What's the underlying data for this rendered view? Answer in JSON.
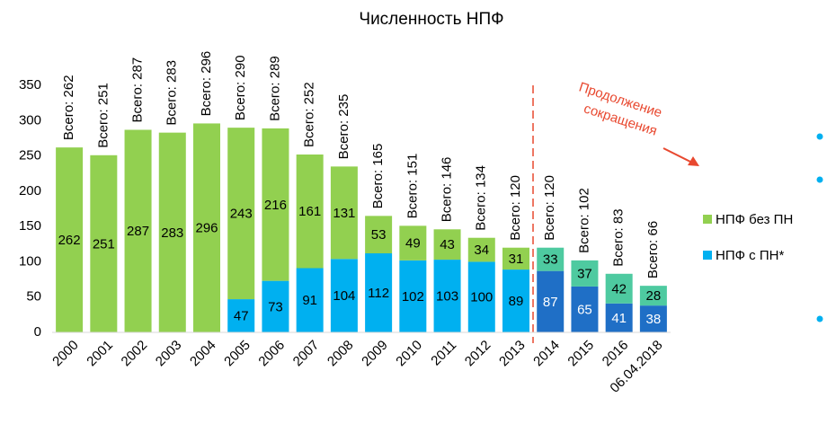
{
  "chart_data": {
    "type": "stacked_bar",
    "title": "Численность НПФ",
    "categories": [
      "2000",
      "2001",
      "2002",
      "2003",
      "2004",
      "2005",
      "2006",
      "2007",
      "2008",
      "2009",
      "2010",
      "2011",
      "2012",
      "2013",
      "2014",
      "2015",
      "2016",
      "06.04.2018"
    ],
    "series": [
      {
        "name": "НПФ с ПН*",
        "color": "#00b0f0",
        "colors": [
          "#00b0f0",
          "#00b0f0",
          "#00b0f0",
          "#00b0f0",
          "#00b0f0",
          "#00b0f0",
          "#00b0f0",
          "#00b0f0",
          "#00b0f0",
          "#00b0f0",
          "#00b0f0",
          "#00b0f0",
          "#00b0f0",
          "#00b0f0",
          "#1f6fc6",
          "#1f6fc6",
          "#1f6fc6",
          "#1f6fc6"
        ],
        "label_colors": [
          "#000",
          "#000",
          "#000",
          "#000",
          "#000",
          "#000",
          "#000",
          "#000",
          "#000",
          "#000",
          "#000",
          "#000",
          "#000",
          "#000",
          "#fff",
          "#fff",
          "#fff",
          "#fff"
        ],
        "values": [
          null,
          null,
          null,
          null,
          null,
          47,
          73,
          91,
          104,
          112,
          102,
          103,
          100,
          89,
          87,
          65,
          41,
          38
        ]
      },
      {
        "name": "НПФ без ПН",
        "color": "#92d050",
        "colors": [
          "#92d050",
          "#92d050",
          "#92d050",
          "#92d050",
          "#92d050",
          "#92d050",
          "#92d050",
          "#92d050",
          "#92d050",
          "#92d050",
          "#92d050",
          "#92d050",
          "#92d050",
          "#92d050",
          "#4ecaa0",
          "#4ecaa0",
          "#4ecaa0",
          "#4ecaa0"
        ],
        "label_colors": [
          "#000",
          "#000",
          "#000",
          "#000",
          "#000",
          "#000",
          "#000",
          "#000",
          "#000",
          "#000",
          "#000",
          "#000",
          "#000",
          "#000",
          "#000",
          "#000",
          "#000",
          "#000"
        ],
        "values": [
          262,
          251,
          287,
          283,
          296,
          243,
          216,
          161,
          131,
          53,
          49,
          43,
          34,
          31,
          33,
          37,
          42,
          28
        ]
      }
    ],
    "total_labels": [
      "Всего: 262",
      "Всего: 251",
      "Всего: 287",
      "Всего: 283",
      "Всего: 296",
      "Всего: 290",
      "Всего: 289",
      "Всего: 252",
      "Всего: 235",
      "Всего: 165",
      "Всего: 151",
      "Всего: 146",
      "Всего: 134",
      "Всего: 120",
      "Всего: 120",
      "Всего: 102",
      "Всего: 83",
      "Всего: 66"
    ],
    "annotation": [
      "Продолжение",
      "сокращения"
    ],
    "ylim": [
      0,
      350
    ],
    "yticks": [
      0,
      50,
      100,
      150,
      200,
      250,
      300,
      350
    ],
    "grid": false
  }
}
